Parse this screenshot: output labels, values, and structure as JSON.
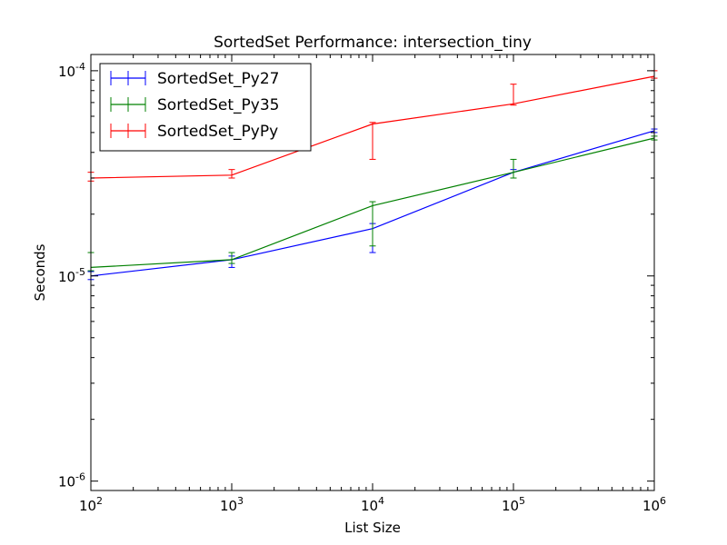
{
  "chart_data": {
    "type": "line",
    "title": "SortedSet Performance: intersection_tiny",
    "xlabel": "List Size",
    "ylabel": "Seconds",
    "x_scale": "log",
    "y_scale": "log",
    "xlim": [
      100,
      1000000
    ],
    "ylim": [
      9e-07,
      0.00012
    ],
    "x": [
      100,
      1000,
      10000,
      100000,
      1000000
    ],
    "x_tick_values": [
      100,
      1000,
      10000,
      100000,
      1000000
    ],
    "x_tick_labels": [
      {
        "base": "10",
        "exp": "2"
      },
      {
        "base": "10",
        "exp": "3"
      },
      {
        "base": "10",
        "exp": "4"
      },
      {
        "base": "10",
        "exp": "5"
      },
      {
        "base": "10",
        "exp": "6"
      }
    ],
    "y_tick_values": [
      1e-06,
      1e-05,
      0.0001
    ],
    "y_tick_labels": [
      {
        "base": "10",
        "exp": "-6"
      },
      {
        "base": "10",
        "exp": "-5"
      },
      {
        "base": "10",
        "exp": "-4"
      }
    ],
    "legend_position": "top-left",
    "grid": false,
    "series": [
      {
        "name": "SortedSet_Py27",
        "color": "#0000ff",
        "values": [
          1e-05,
          1.2e-05,
          1.7e-05,
          3.2e-05,
          5.1e-05
        ],
        "err_low": [
          9.6e-06,
          1.1e-05,
          1.3e-05,
          3e-05,
          5e-05
        ],
        "err_high": [
          1.05e-05,
          1.25e-05,
          1.8e-05,
          3.3e-05,
          5.2e-05
        ]
      },
      {
        "name": "SortedSet_Py35",
        "color": "#008000",
        "values": [
          1.1e-05,
          1.2e-05,
          2.2e-05,
          3.2e-05,
          4.7e-05
        ],
        "err_low": [
          1.06e-05,
          1.15e-05,
          1.4e-05,
          3e-05,
          4.6e-05
        ],
        "err_high": [
          1.3e-05,
          1.3e-05,
          2.3e-05,
          3.7e-05,
          4.8e-05
        ]
      },
      {
        "name": "SortedSet_PyPy",
        "color": "#ff0000",
        "values": [
          3e-05,
          3.1e-05,
          5.5e-05,
          6.9e-05,
          9.4e-05
        ],
        "err_low": [
          2.9e-05,
          3e-05,
          3.7e-05,
          6.8e-05,
          9.2e-05
        ],
        "err_high": [
          3.2e-05,
          3.3e-05,
          5.6e-05,
          8.6e-05,
          0.0001
        ]
      }
    ]
  }
}
